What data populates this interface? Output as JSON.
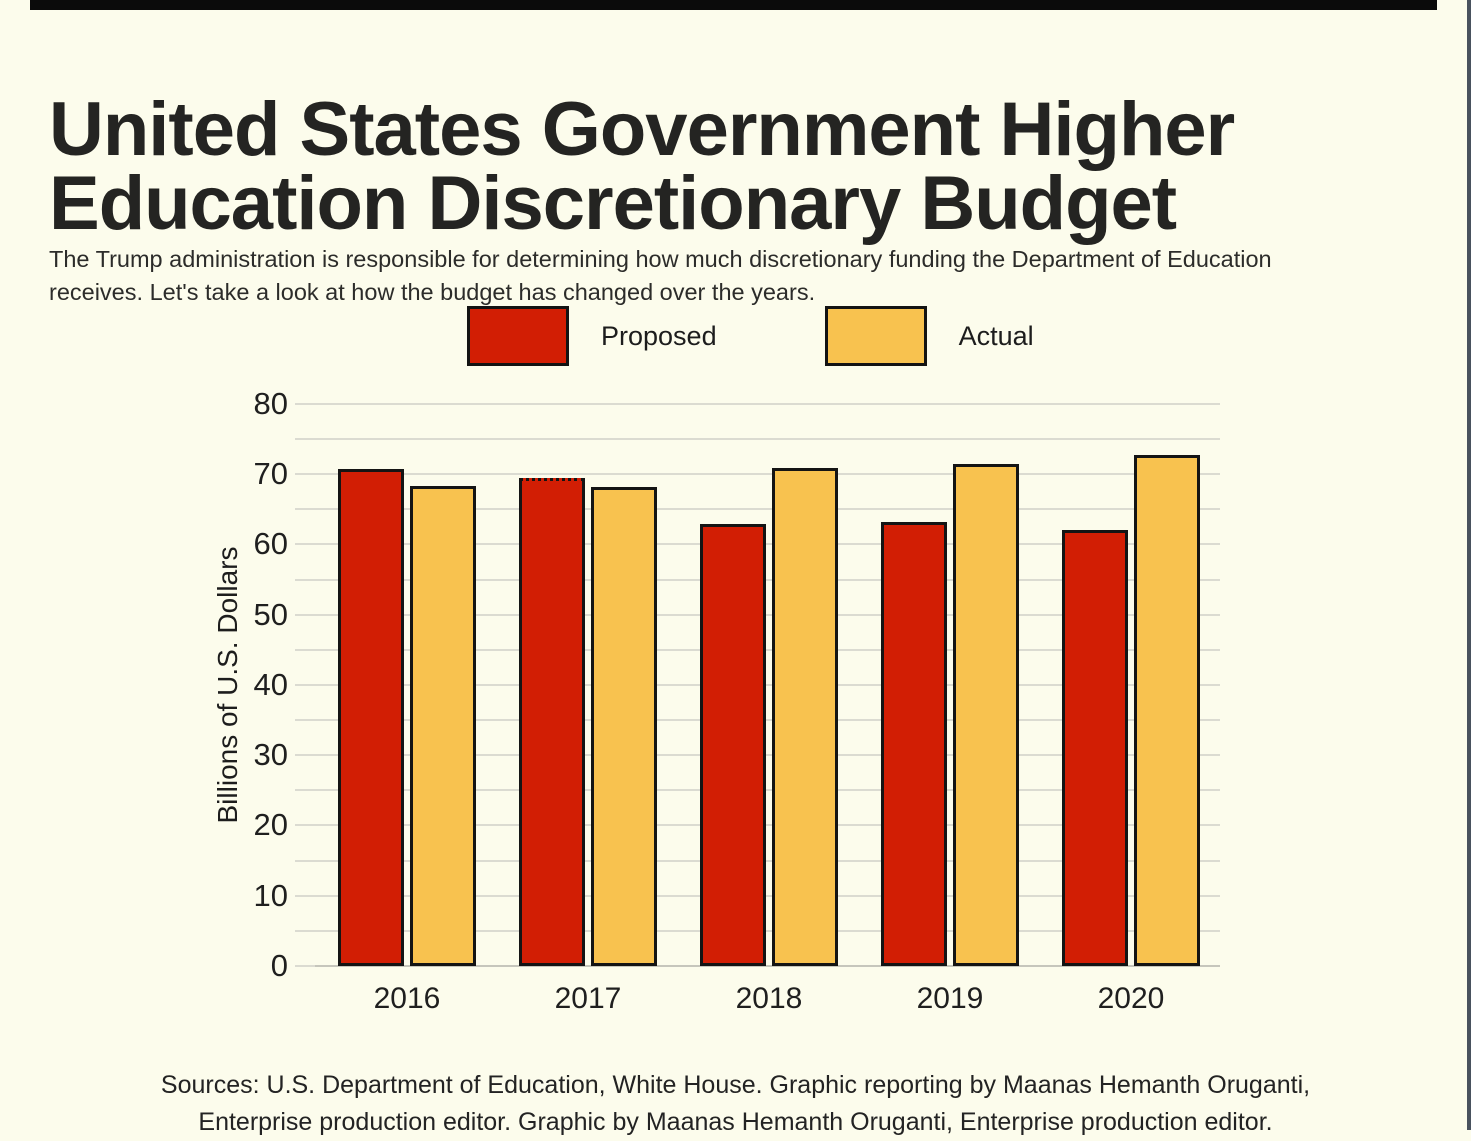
{
  "title_line1": "United States Government Higher",
  "title_line2": "Education Discretionary Budget",
  "subtitle_line1": "The Trump administration is responsible for determining how much discretionary funding the Department of Education",
  "subtitle_line2": "receives. Let's take a look at how the budget has changed over the years.",
  "legend": {
    "items": [
      {
        "label": "Proposed",
        "color": "#d21e04"
      },
      {
        "label": "Actual",
        "color": "#f8c24f"
      }
    ]
  },
  "chart_data": {
    "type": "bar",
    "categories": [
      "2016",
      "2017",
      "2018",
      "2019",
      "2020"
    ],
    "series": [
      {
        "name": "Proposed",
        "color": "#d21e04",
        "values": [
          70.7,
          69.4,
          62.9,
          63.2,
          62.0
        ],
        "dotted_top_index": 1
      },
      {
        "name": "Actual",
        "color": "#f8c24f",
        "values": [
          68.3,
          68.2,
          70.9,
          71.5,
          72.8
        ]
      }
    ],
    "title": "",
    "xlabel": "",
    "ylabel": "Billions of U.S. Dollars",
    "ylim": [
      0,
      80
    ],
    "ytick_step": 10,
    "grid_step": 5,
    "grid": true,
    "legend_position": "top",
    "bar_border_color": "#141414",
    "gridline_color": "#dbdbd1",
    "background_color": "#fcfcec"
  },
  "source_line1": "Sources: U.S. Department of Education, White House. Graphic reporting by Maanas Hemanth Oruganti,",
  "source_line2": "Enterprise production editor. Graphic by Maanas Hemanth Oruganti, Enterprise production editor."
}
